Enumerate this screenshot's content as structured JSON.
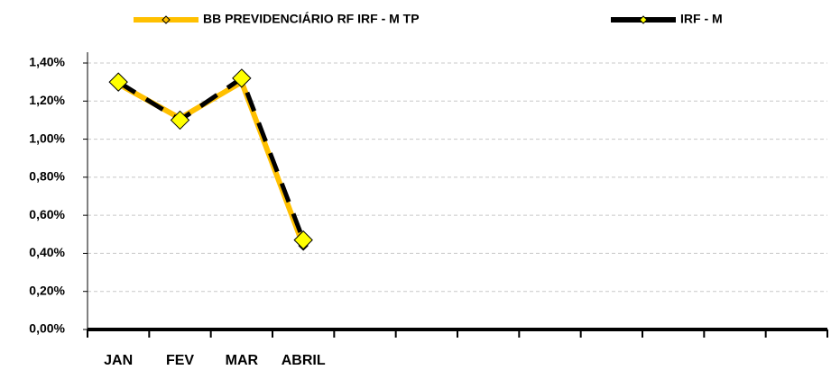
{
  "chart_data": {
    "type": "line",
    "categories": [
      "JAN",
      "FEV",
      "MAR",
      "ABRIL",
      null,
      null,
      null,
      null,
      null,
      null,
      null,
      null
    ],
    "series": [
      {
        "name": "BB PREVIDENCIÁRIO RF IRF - M TP",
        "color": "#ffc000",
        "marker_color": "#ffc000",
        "dashed": false,
        "values": [
          1.29,
          1.11,
          1.3,
          0.44,
          null,
          null,
          null,
          null,
          null,
          null,
          null,
          null
        ]
      },
      {
        "name": "IRF - M",
        "color": "#000000",
        "marker_color": "#ffff00",
        "dashed": true,
        "values": [
          1.3,
          1.1,
          1.32,
          0.47,
          null,
          null,
          null,
          null,
          null,
          null,
          null,
          null
        ]
      }
    ],
    "ylim": [
      0,
      1.4
    ],
    "yticks": [
      {
        "value": 0,
        "label": "0,00%"
      },
      {
        "value": 0.2,
        "label": "0,20%"
      },
      {
        "value": 0.4,
        "label": "0,40%"
      },
      {
        "value": 0.6,
        "label": "0,60%"
      },
      {
        "value": 0.8,
        "label": "0,80%"
      },
      {
        "value": 1.0,
        "label": "1,00%"
      },
      {
        "value": 1.2,
        "label": "1,20%"
      },
      {
        "value": 1.4,
        "label": "1,40%"
      }
    ],
    "grid": true,
    "legend": "top"
  }
}
